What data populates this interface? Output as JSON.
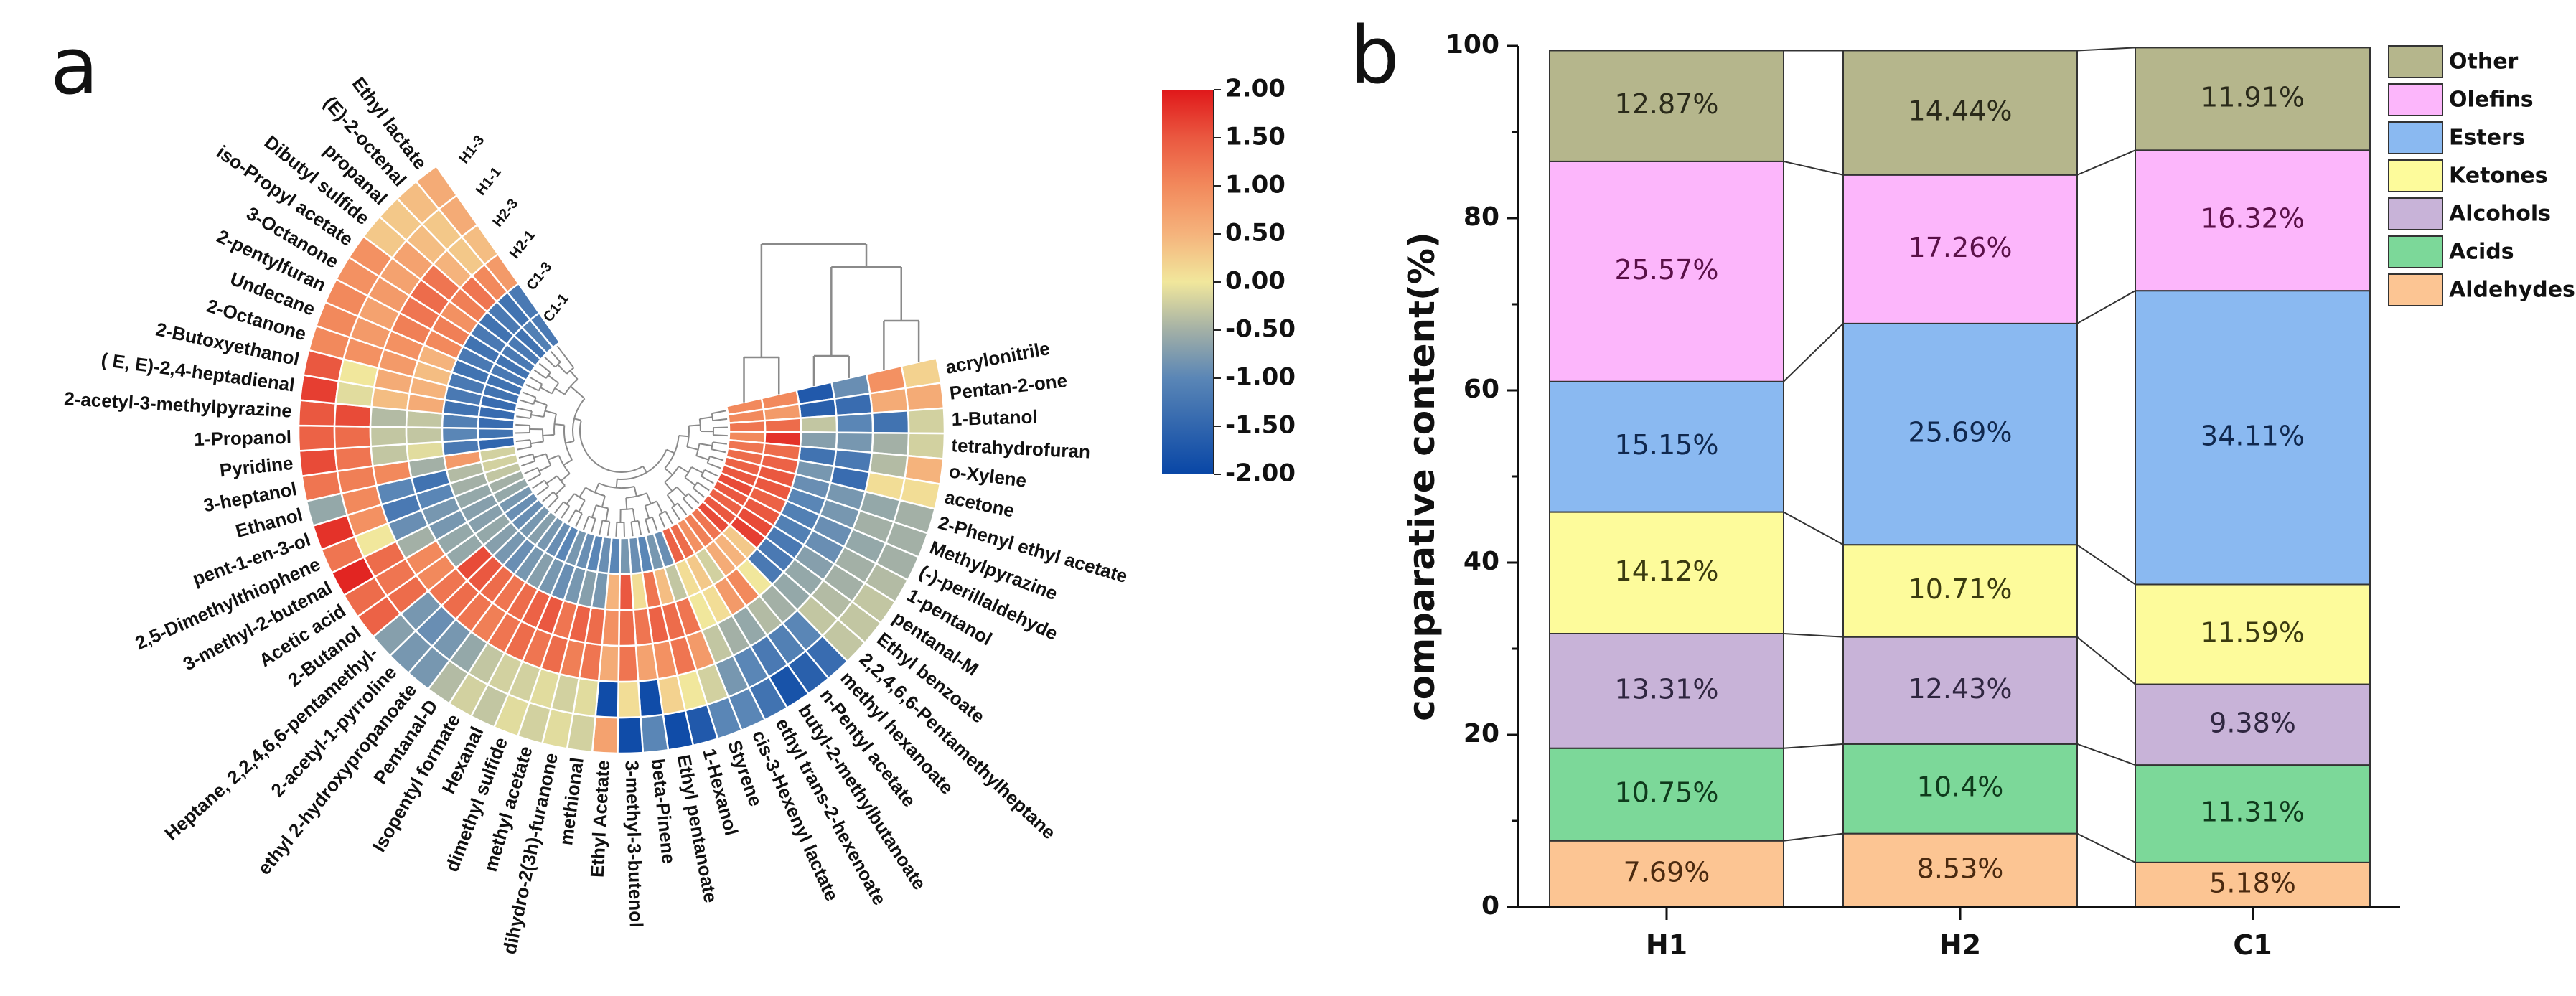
{
  "chart_data": [
    {
      "type": "heatmap",
      "layout": "circular",
      "panel_label": "a",
      "columns": [
        "H1-3",
        "H1-1",
        "H2-3",
        "H2-1",
        "C1-3",
        "C1-1"
      ],
      "rows": [
        "acrylonitrile",
        "Pentan-2-one",
        "1-Butanol",
        "tetrahydrofuran",
        "o-Xylene",
        "acetone",
        "2-Phenyl ethyl acetate",
        "Methylpyrazine",
        "(-)-perillaldehyde",
        "1-pentanol",
        "pentanal-M",
        "Ethyl benzoate",
        "2,2,4,6,6-Pentamethylheptane",
        "methyl hexanoate",
        "n-Pentyl acetate",
        "butyl-2-methylbutanoate",
        "ethyl trans-2-hexenoate",
        "cis-3-Hexenyl lactate",
        "Styrene",
        "1-Hexanol",
        "Ethyl pentanoate",
        "beta-Pinene",
        "3-methyl-3-butenol",
        "Ethyl Acetate",
        "methional",
        "dihydro-2(3h)-furanone",
        "methyl acetate",
        "dimethyl sulfide",
        "Hexanal",
        "Isopentyl formate",
        "Pentanal-D",
        "ethyl 2-hydroxypropanoate",
        "2-acetyl-1-pyrroline",
        "Heptane, 2,2,4,6,6-pentamethyl-",
        "2-Butanol",
        "Acetic acid",
        "3-methyl-2-butenal",
        "2,5-Dimethylthiophene",
        "pent-1-en-3-ol",
        "Ethanol",
        "3-heptanol",
        "Pyridine",
        "1-Propanol",
        "2-acetyl-3-methylpyrazine",
        "( E, E)-2,4-heptadienal",
        "2-Butoxyethanol",
        "2-Octanone",
        "Undecane",
        "2-pentylfuran",
        "3-Octanone",
        "iso-Propyl acetate",
        "Dibutyl sulfide",
        "propanal",
        "(E)-2-octenal",
        "Ethyl lactate"
      ],
      "values": [
        [
          0.2,
          0.9,
          -0.9,
          -1.7,
          1.0,
          1.0
        ],
        [
          0.6,
          0.6,
          -1.4,
          -1.6,
          0.8,
          1.0
        ],
        [
          -0.2,
          -1.3,
          -1.0,
          -0.3,
          1.3,
          1.2
        ],
        [
          -0.2,
          -0.5,
          -0.8,
          -0.7,
          1.8,
          1.0
        ],
        [
          0.5,
          -0.4,
          -1.2,
          -1.3,
          1.3,
          1.2
        ],
        [
          0.1,
          0.1,
          -1.4,
          -0.8,
          1.4,
          1.3
        ],
        [
          -0.5,
          -0.6,
          -0.8,
          -0.9,
          1.5,
          1.4
        ],
        [
          -0.5,
          -0.5,
          -0.8,
          -1.0,
          1.5,
          1.5
        ],
        [
          -0.5,
          -0.6,
          -0.9,
          -1.1,
          1.4,
          1.6
        ],
        [
          -0.4,
          -0.5,
          -0.9,
          -1.1,
          1.5,
          1.5
        ],
        [
          -0.3,
          -0.5,
          -0.7,
          -1.2,
          1.6,
          1.4
        ],
        [
          -0.3,
          -0.4,
          -0.6,
          -1.2,
          1.7,
          1.5
        ],
        [
          -0.3,
          -0.3,
          -0.6,
          -1.2,
          0.3,
          1.6
        ],
        [
          -1.4,
          -1.0,
          -0.5,
          0.0,
          0.5,
          1.2
        ],
        [
          -1.6,
          -1.1,
          -0.4,
          1.0,
          0.6,
          1.1
        ],
        [
          -1.8,
          -1.2,
          -0.6,
          0.8,
          -0.2,
          0.9
        ],
        [
          -1.3,
          -1.0,
          -0.5,
          0.1,
          0.3,
          1.3
        ],
        [
          -1.0,
          -0.8,
          -0.3,
          0.0,
          0.1,
          1.4
        ],
        [
          -1.0,
          -0.2,
          0.8,
          1.2,
          -0.3,
          -0.9
        ],
        [
          -1.7,
          0.0,
          1.2,
          1.3,
          0.4,
          -0.8
        ],
        [
          -1.9,
          0.2,
          0.9,
          1.4,
          1.2,
          -1.0
        ],
        [
          -1.0,
          -1.9,
          0.7,
          1.2,
          0.1,
          -0.9
        ],
        [
          -1.9,
          0.1,
          1.2,
          1.3,
          1.5,
          -0.8
        ],
        [
          0.7,
          -1.9,
          0.6,
          0.9,
          0.5,
          -1.0
        ],
        [
          -0.2,
          -0.1,
          1.2,
          1.3,
          -0.8,
          -0.9
        ],
        [
          -0.1,
          -0.2,
          1.1,
          1.4,
          -0.7,
          -1.0
        ],
        [
          -0.2,
          -0.1,
          1.3,
          1.2,
          -0.8,
          -0.9
        ],
        [
          -0.1,
          -0.2,
          1.2,
          1.5,
          -0.9,
          -0.8
        ],
        [
          -0.3,
          -0.2,
          1.3,
          1.4,
          -0.8,
          -1.0
        ],
        [
          -0.2,
          -0.3,
          1.2,
          1.3,
          -0.7,
          -0.9
        ],
        [
          -0.4,
          -0.6,
          1.1,
          1.2,
          -0.8,
          -0.8
        ],
        [
          -0.8,
          -0.8,
          1.2,
          1.3,
          -0.9,
          -0.7
        ],
        [
          -0.8,
          -0.9,
          1.3,
          1.5,
          -0.8,
          -0.8
        ],
        [
          -0.7,
          -0.8,
          1.2,
          1.6,
          -0.7,
          -0.9
        ],
        [
          1.4,
          1.3,
          1.0,
          -0.6,
          -0.6,
          -0.9
        ],
        [
          1.3,
          1.2,
          1.0,
          -0.6,
          -0.7,
          -0.8
        ],
        [
          1.9,
          1.3,
          -0.5,
          -0.8,
          -0.7,
          -0.6
        ],
        [
          1.2,
          0.0,
          -0.9,
          -0.8,
          -0.6,
          -0.5
        ],
        [
          1.8,
          0.9,
          -1.2,
          -1.0,
          -0.5,
          -0.3
        ],
        [
          -0.6,
          1.0,
          -1.0,
          -1.3,
          -0.4,
          -0.2
        ],
        [
          1.2,
          1.1,
          1.0,
          -0.5,
          0.8,
          -0.2
        ],
        [
          1.6,
          1.2,
          -0.3,
          -0.1,
          -1.2,
          -1.5
        ],
        [
          1.4,
          1.3,
          -0.3,
          -0.3,
          -1.0,
          -1.3
        ],
        [
          1.5,
          1.6,
          -0.4,
          -0.3,
          -1.1,
          -1.4
        ],
        [
          1.7,
          -0.1,
          0.4,
          0.6,
          -1.3,
          -1.4
        ],
        [
          1.5,
          0.0,
          0.6,
          0.5,
          -1.2,
          -1.4
        ],
        [
          1.0,
          0.9,
          0.8,
          0.4,
          -1.2,
          -1.3
        ],
        [
          1.0,
          0.8,
          0.9,
          0.5,
          -1.3,
          -1.3
        ],
        [
          1.0,
          0.7,
          1.1,
          1.0,
          -1.2,
          -1.2
        ],
        [
          0.9,
          0.8,
          1.2,
          1.1,
          -1.3,
          -1.3
        ],
        [
          0.9,
          0.7,
          1.3,
          0.9,
          -1.2,
          -1.2
        ],
        [
          0.3,
          0.7,
          1.2,
          1.1,
          -1.3,
          -1.2
        ],
        [
          0.3,
          0.4,
          0.5,
          1.2,
          -1.2,
          -1.3
        ],
        [
          0.4,
          0.3,
          0.3,
          1.0,
          -1.3,
          -1.1
        ],
        [
          0.6,
          0.6,
          0.4,
          0.8,
          -1.2,
          -1.2
        ]
      ],
      "colorbar": {
        "min": -2,
        "max": 2,
        "ticks": [
          "2.00",
          "1.50",
          "1.00",
          "0.50",
          "0.00",
          "-0.50",
          "-1.00",
          "-1.50",
          "-2.00"
        ],
        "colors": [
          {
            "value": -2,
            "color": "#0846a6"
          },
          {
            "value": -1,
            "color": "#5a86b6"
          },
          {
            "value": -0.5,
            "color": "#a3b0a6"
          },
          {
            "value": 0,
            "color": "#f1e79c"
          },
          {
            "value": 0.5,
            "color": "#f5b37c"
          },
          {
            "value": 1,
            "color": "#f2895c"
          },
          {
            "value": 1.5,
            "color": "#ea5840"
          },
          {
            "value": 2,
            "color": "#e0181a"
          }
        ]
      },
      "row_dendrogram": true,
      "column_dendrogram": true
    },
    {
      "type": "bar",
      "stacked": true,
      "panel_label": "b",
      "categories": [
        "H1",
        "H2",
        "C1"
      ],
      "ylabel": "comparative content(%)",
      "xlabel": "",
      "ylim": [
        0,
        100
      ],
      "yticks": [
        "0",
        "20",
        "40",
        "60",
        "80",
        "100"
      ],
      "legend_position": "right",
      "series": [
        {
          "name": "Aldehydes",
          "color": "#fcc593",
          "text_color": "#4a2a10",
          "values": [
            7.69,
            8.53,
            5.18
          ],
          "labels": [
            "7.69%",
            "8.53%",
            "5.18%"
          ]
        },
        {
          "name": "Acids",
          "color": "#7cd899",
          "text_color": "#0f3a1c",
          "values": [
            10.75,
            10.4,
            11.31
          ],
          "labels": [
            "10.75%",
            "10.4%",
            "11.31%"
          ]
        },
        {
          "name": "Alcohols",
          "color": "#c8b3d8",
          "text_color": "#2f2640",
          "values": [
            13.31,
            12.43,
            9.38
          ],
          "labels": [
            "13.31%",
            "12.43%",
            "9.38%"
          ]
        },
        {
          "name": "Ketones",
          "color": "#fdfb9b",
          "text_color": "#3a3a10",
          "values": [
            14.12,
            10.71,
            11.59
          ],
          "labels": [
            "14.12%",
            "10.71%",
            "11.59%"
          ]
        },
        {
          "name": "Esters",
          "color": "#8ab9f1",
          "text_color": "#10284e",
          "values": [
            15.15,
            25.69,
            34.11
          ],
          "labels": [
            "15.15%",
            "25.69%",
            "34.11%"
          ]
        },
        {
          "name": "Olefins",
          "color": "#fcb6fb",
          "text_color": "#5a1048",
          "values": [
            25.57,
            17.26,
            16.32
          ],
          "labels": [
            "25.57%",
            "17.26%",
            "16.32%"
          ]
        },
        {
          "name": "Other",
          "color": "#b5b68c",
          "text_color": "#2a2a1a",
          "values": [
            12.87,
            14.44,
            11.91
          ],
          "labels": [
            "12.87%",
            "14.44%",
            "11.91%"
          ]
        }
      ],
      "legend_order": [
        "Other",
        "Olefins",
        "Esters",
        "Ketones",
        "Alcohols",
        "Acids",
        "Aldehydes"
      ]
    }
  ]
}
